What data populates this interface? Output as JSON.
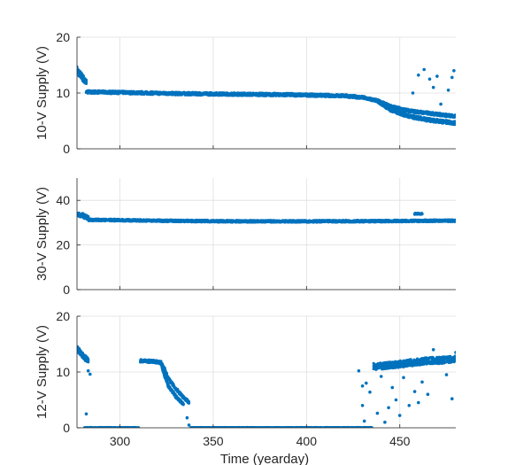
{
  "chart_data": [
    {
      "type": "scatter",
      "title": "",
      "xlabel": "",
      "ylabel": "10-V Supply (V)",
      "xlim": [
        277,
        480
      ],
      "ylim": [
        0,
        20
      ],
      "xticks": [
        300,
        350,
        400,
        450
      ],
      "yticks": [
        0,
        10,
        20
      ],
      "yticklabels": [
        "0",
        "10",
        "20"
      ],
      "xticklabels": [],
      "grid": true,
      "color": "#0072BD",
      "series": [
        {
          "segments": [
            {
              "x": [
                277,
                278,
                279,
                280,
                281,
                282
              ],
              "y": [
                14.2,
                13.6,
                13.2,
                12.8,
                12.2,
                11.8
              ],
              "spread": 1.2
            },
            {
              "x": [
                282,
                300,
                330,
                360,
                390,
                420,
                430,
                438,
                445,
                455,
                465,
                475,
                480
              ],
              "y": [
                10.2,
                10.1,
                9.9,
                9.8,
                9.7,
                9.5,
                9.2,
                8.6,
                7.6,
                6.8,
                6.4,
                6.0,
                5.8
              ],
              "spread": 0.5
            },
            {
              "x": [
                438,
                445,
                455,
                465,
                475,
                480
              ],
              "y": [
                8.6,
                7.0,
                5.8,
                5.2,
                4.8,
                4.6
              ],
              "spread": 0.6
            }
          ],
          "outliers": [
            [
              460,
              13.2
            ],
            [
              463,
              14.2
            ],
            [
              466,
              12.5
            ],
            [
              468,
              11.0
            ],
            [
              470,
              13.0
            ],
            [
              476,
              10.5
            ],
            [
              478,
              12.8
            ],
            [
              479,
              14.0
            ],
            [
              457,
              10.0
            ],
            [
              472,
              8.0
            ]
          ]
        }
      ]
    },
    {
      "type": "scatter",
      "title": "",
      "xlabel": "",
      "ylabel": "30-V Supply (V)",
      "xlim": [
        277,
        480
      ],
      "ylim": [
        0,
        50
      ],
      "xticks": [
        300,
        350,
        400,
        450
      ],
      "yticks": [
        0,
        20,
        40
      ],
      "yticklabels": [
        "0",
        "20",
        "40"
      ],
      "xticklabels": [],
      "grid": true,
      "color": "#0072BD",
      "series": [
        {
          "segments": [
            {
              "x": [
                277,
                278,
                279,
                280,
                281,
                282,
                283
              ],
              "y": [
                34,
                33.6,
                33.2,
                33.4,
                32.8,
                32.6,
                32.0
              ],
              "spread": 1.8
            },
            {
              "x": [
                283,
                320,
                360,
                400,
                440,
                480
              ],
              "y": [
                31.3,
                30.9,
                30.6,
                30.6,
                30.7,
                30.9
              ],
              "spread": 0.9
            },
            {
              "x": [
                458,
                460,
                462
              ],
              "y": [
                34,
                34,
                34
              ],
              "spread": 0.6
            }
          ],
          "outliers": []
        }
      ]
    },
    {
      "type": "scatter",
      "title": "",
      "xlabel": "Time (yearday)",
      "ylabel": "12-V Supply (V)",
      "xlim": [
        277,
        480
      ],
      "ylim": [
        0,
        20
      ],
      "xticks": [
        300,
        350,
        400,
        450
      ],
      "yticks": [
        0,
        10,
        20
      ],
      "xticklabels": [
        "300",
        "350",
        "400",
        "450"
      ],
      "yticklabels": [
        "0",
        "10",
        "20"
      ],
      "grid": true,
      "color": "#0072BD",
      "series": [
        {
          "segments": [
            {
              "x": [
                277,
                278,
                279,
                280,
                281,
                282,
                283
              ],
              "y": [
                14.2,
                13.8,
                13.4,
                13.0,
                12.6,
                12.4,
                12.2
              ],
              "spread": 1.0
            },
            {
              "x": [
                281,
                290,
                300,
                310
              ],
              "y": [
                0,
                0,
                0,
                0
              ],
              "spread": 0.15
            },
            {
              "x": [
                338,
                360,
                380,
                400,
                420,
                435
              ],
              "y": [
                0,
                0,
                0,
                0,
                0,
                0
              ],
              "spread": 0.15
            },
            {
              "x": [
                311,
                318,
                322,
                324,
                326,
                330,
                334,
                337
              ],
              "y": [
                12.0,
                11.9,
                11.7,
                10.5,
                8.8,
                7.0,
                5.5,
                4.6
              ],
              "spread": 0.5
            },
            {
              "x": [
                322,
                324,
                326,
                330,
                334
              ],
              "y": [
                11.5,
                9.2,
                7.5,
                5.6,
                4.2
              ],
              "spread": 0.5
            },
            {
              "x": [
                436,
                445,
                455,
                465,
                472,
                480
              ],
              "y": [
                11.0,
                11.2,
                11.6,
                12.0,
                12.1,
                12.4
              ],
              "spread": 1.2
            }
          ],
          "outliers": [
            [
              283,
              10.2
            ],
            [
              284,
              9.6
            ],
            [
              282,
              2.5
            ],
            [
              337,
              0.5
            ],
            [
              336,
              1.8
            ],
            [
              428,
              10.2
            ],
            [
              430,
              7.5
            ],
            [
              430,
              4.0
            ],
            [
              431,
              1.2
            ],
            [
              432,
              8.0
            ],
            [
              434,
              6.4
            ],
            [
              438,
              2.6
            ],
            [
              440,
              9.2
            ],
            [
              442,
              1.0
            ],
            [
              444,
              3.6
            ],
            [
              446,
              7.2
            ],
            [
              448,
              5.0
            ],
            [
              450,
              2.2
            ],
            [
              452,
              9.0
            ],
            [
              455,
              4.0
            ],
            [
              458,
              6.5
            ],
            [
              460,
              4.5
            ],
            [
              462,
              8.2
            ],
            [
              465,
              6.0
            ],
            [
              468,
              14.0
            ],
            [
              475,
              9.5
            ],
            [
              478,
              5.2
            ],
            [
              480,
              13.5
            ]
          ]
        }
      ]
    }
  ]
}
